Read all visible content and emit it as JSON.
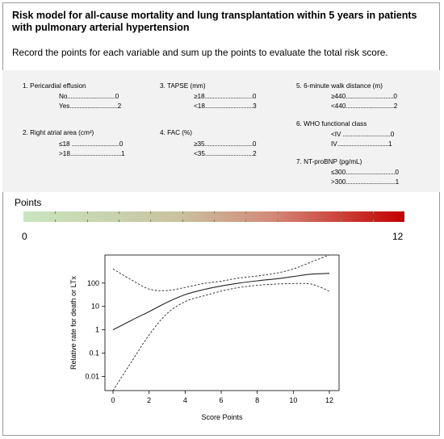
{
  "header": {
    "title": "Risk model for all-cause mortality and lung transplantation within 5 years in patients with pulmonary arterial hypertension",
    "subtitle": "Record the points for each variable and sum up the points to evaluate the total risk score."
  },
  "variables": [
    {
      "name": "1. Pericardial effusion",
      "options": [
        {
          "label": "No",
          "dots": "..............................",
          "points": "0"
        },
        {
          "label": "Yes",
          "dots": "..............................",
          "points": "2"
        }
      ]
    },
    {
      "name": "2. Right atrial area (cm²)",
      "options": [
        {
          "label": "≤18",
          "dots": " ..............................",
          "points": "0"
        },
        {
          "label": ">18",
          "dots": "................................",
          "points": "1"
        }
      ]
    },
    {
      "name": "3. TAPSE (mm)",
      "options": [
        {
          "label": "≥18",
          "dots": "..............................",
          "points": "0"
        },
        {
          "label": "<18",
          "dots": "..............................",
          "points": "3"
        }
      ]
    },
    {
      "name": "4. FAC (%)",
      "options": [
        {
          "label": "≥35",
          "dots": "..............................",
          "points": "0"
        },
        {
          "label": "<35",
          "dots": "..............................",
          "points": "2"
        }
      ]
    },
    {
      "name": "5. 6-minute walk distance (m)",
      "options": [
        {
          "label": "≥440",
          "dots": "..............................",
          "points": "0"
        },
        {
          "label": "<440",
          "dots": "..............................",
          "points": "2"
        }
      ]
    },
    {
      "name": "6. WHO functional class",
      "options": [
        {
          "label": "<IV",
          "dots": " ..............................",
          "points": "0"
        },
        {
          "label": "IV",
          "dots": "................................",
          "points": "1"
        }
      ]
    },
    {
      "name": "7. NT-proBNP (pg/mL)",
      "options": [
        {
          "label": "≤300",
          "dots": "...............................",
          "points": "0"
        },
        {
          "label": ">300",
          "dots": "...............................",
          "points": "1"
        }
      ]
    }
  ],
  "points_bar": {
    "label": "Points",
    "min": "0",
    "max": "12",
    "tick_count": 12
  },
  "plot": {
    "ylabel": "Relative rate for death or LTx",
    "xlabel": "Score Points",
    "xticks": [
      "0",
      "2",
      "4",
      "6",
      "8",
      "10",
      "12"
    ],
    "yticks": [
      "100",
      "10",
      "1",
      "0.1",
      "0.01"
    ],
    "xlim": [
      0,
      12
    ],
    "ylim_log10": [
      -2.6,
      3.2
    ],
    "estimate": [
      [
        0,
        1
      ],
      [
        1,
        2.5
      ],
      [
        2,
        6
      ],
      [
        3,
        15
      ],
      [
        4,
        32
      ],
      [
        5,
        52
      ],
      [
        6,
        75
      ],
      [
        7,
        100
      ],
      [
        8,
        125
      ],
      [
        9,
        150
      ],
      [
        10,
        190
      ],
      [
        11,
        240
      ],
      [
        12,
        260
      ]
    ],
    "upper": [
      [
        0,
        400
      ],
      [
        1,
        140
      ],
      [
        2,
        55
      ],
      [
        3,
        48
      ],
      [
        4,
        65
      ],
      [
        5,
        95
      ],
      [
        6,
        120
      ],
      [
        7,
        165
      ],
      [
        8,
        200
      ],
      [
        9,
        260
      ],
      [
        10,
        400
      ],
      [
        11,
        800
      ],
      [
        12,
        1600
      ]
    ],
    "lower": [
      [
        0,
        0.0025
      ],
      [
        1,
        0.04
      ],
      [
        2,
        0.6
      ],
      [
        3,
        5
      ],
      [
        4,
        16
      ],
      [
        5,
        28
      ],
      [
        6,
        45
      ],
      [
        7,
        65
      ],
      [
        8,
        80
      ],
      [
        9,
        90
      ],
      [
        10,
        95
      ],
      [
        11,
        90
      ],
      [
        12,
        45
      ]
    ]
  }
}
